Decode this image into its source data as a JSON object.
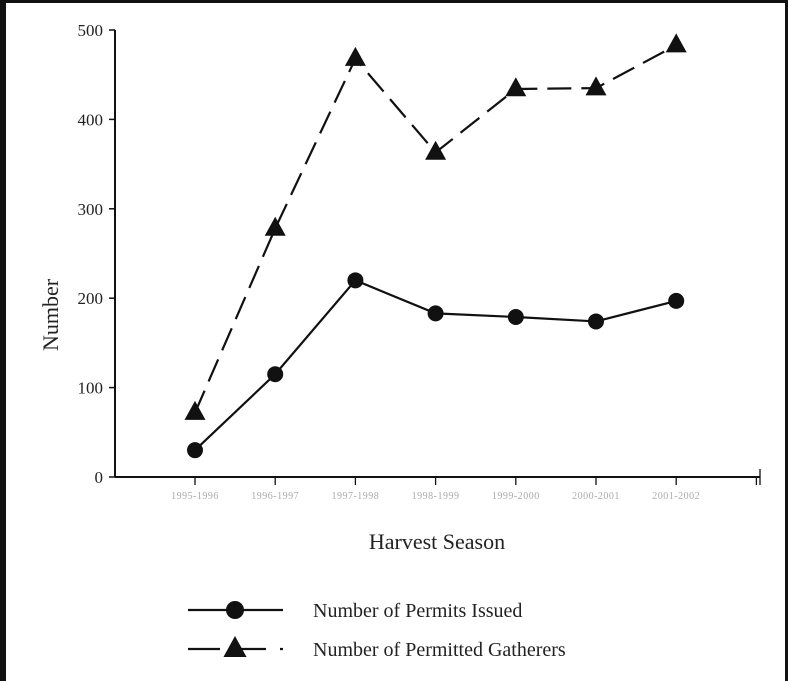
{
  "chart_data": {
    "type": "line",
    "categories": [
      "1995-1996",
      "1996-1997",
      "1997-1998",
      "1998-1999",
      "1999-2000",
      "2000-2001",
      "2001-2002"
    ],
    "series": [
      {
        "name": "Number of Permits Issued",
        "values": [
          30,
          115,
          220,
          183,
          179,
          174,
          197
        ],
        "marker": "circle",
        "line_style": "solid",
        "color": "#111111"
      },
      {
        "name": "Number of Permitted Gatherers",
        "values": [
          72,
          278,
          468,
          363,
          434,
          435,
          483
        ],
        "marker": "triangle",
        "line_style": "dashed",
        "color": "#111111"
      }
    ],
    "xlabel": "Harvest Season",
    "ylabel": "Number",
    "ylim": [
      0,
      500
    ],
    "yticks": [
      0,
      100,
      200,
      300,
      400,
      500
    ],
    "grid": false,
    "legend_position": "bottom"
  }
}
